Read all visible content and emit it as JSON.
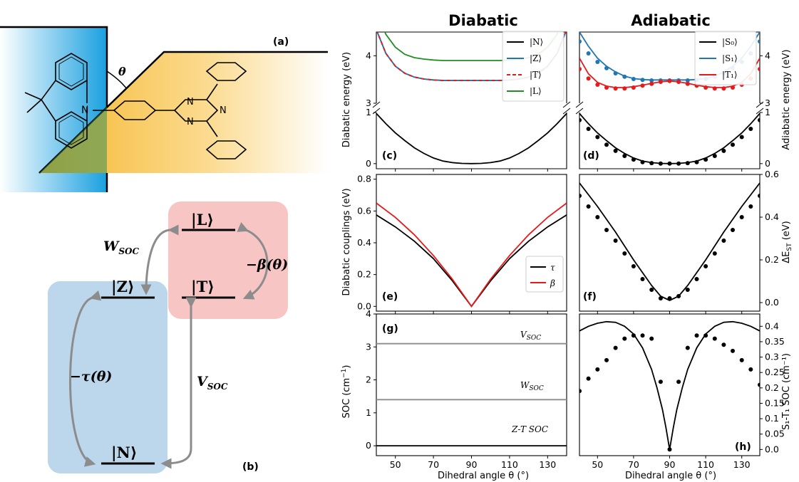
{
  "titles": {
    "left": "Diabatic",
    "right": "Adiabatic"
  },
  "panel_labels": {
    "a": "(a)",
    "b": "(b)",
    "c": "(c)",
    "d": "(d)",
    "e": "(e)",
    "f": "(f)",
    "g": "(g)",
    "h": "(h)"
  },
  "molecule": {
    "theta_label": "θ",
    "N": "N"
  },
  "scheme": {
    "L": "|L⟩",
    "T": "|T⟩",
    "Z": "|Z⟩",
    "N": "|N⟩",
    "W_soc": "W",
    "W_sub": "SOC",
    "V_soc": "V",
    "V_sub": "SOC",
    "beta": "−β(θ)",
    "tau": "−τ(θ)"
  },
  "colors": {
    "black": "#000000",
    "blue": "#1f77b4",
    "red": "#e8191b",
    "green": "#1f8f1f",
    "gray": "#8c8c8c",
    "boxblue": "#bcd6ec",
    "boxred": "#f8c5c5",
    "donor": "#1aa0e0",
    "acceptor": "#f5b62b"
  },
  "axes_labels": {
    "c_y": "Diabatic energy (eV)",
    "d_y": "Adiabatic energy (eV)",
    "e_y": "Diabatic couplings (eV)",
    "f_y": "ΔE",
    "f_y_sub": "ST",
    "f_y_unit": " (eV)",
    "g_y": "SOC (cm",
    "g_y_sup": "−1",
    "g_y_end": ")",
    "h_y": "S₁-T₁ SOC (cm⁻¹)",
    "x": "Dihedral angle θ (°)"
  },
  "legend_c": [
    "|N⟩",
    "|Z⟩",
    "|T⟩",
    "|L⟩"
  ],
  "legend_d": [
    "|S₀⟩",
    "|S₁⟩",
    "|T₁⟩"
  ],
  "legend_e": [
    "τ",
    "β"
  ],
  "soc_labels": {
    "v": "V",
    "v_sub": "SOC",
    "w": "W",
    "w_sub": "SOC",
    "zt": "Z-T SOC"
  },
  "chart_data": [
    {
      "panel": "c",
      "type": "line",
      "xlim": [
        40,
        140
      ],
      "ylim_top": [
        3,
        4.5
      ],
      "ylim_bottom": [
        -0.1,
        1
      ],
      "yticks_top": [
        3,
        4
      ],
      "yticks_bottom": [
        0,
        1
      ],
      "xticks": [
        50,
        70,
        90,
        110,
        130
      ],
      "series": [
        {
          "name": "|N⟩",
          "color": "#000000",
          "x": [
            40,
            45,
            50,
            55,
            60,
            65,
            70,
            75,
            80,
            85,
            90,
            95,
            100,
            105,
            110,
            115,
            120,
            125,
            130,
            135,
            140
          ],
          "values": [
            0.98,
            0.78,
            0.6,
            0.45,
            0.31,
            0.2,
            0.11,
            0.05,
            0.02,
            0.005,
            0.0,
            0.005,
            0.02,
            0.05,
            0.11,
            0.2,
            0.31,
            0.45,
            0.6,
            0.78,
            0.98
          ]
        },
        {
          "name": "|Z⟩",
          "color": "#1f77b4",
          "x": [
            40,
            45,
            50,
            55,
            60,
            65,
            70,
            75,
            80,
            85,
            90,
            95,
            100,
            105,
            110,
            115,
            120,
            125,
            130,
            135,
            140
          ],
          "values": [
            4.55,
            4.05,
            3.78,
            3.63,
            3.55,
            3.51,
            3.49,
            3.48,
            3.48,
            3.48,
            3.48,
            3.48,
            3.48,
            3.48,
            3.49,
            3.51,
            3.55,
            3.63,
            3.78,
            4.05,
            4.55
          ]
        },
        {
          "name": "|T⟩",
          "color": "#e8191b",
          "dash": true,
          "x": [
            40,
            45,
            50,
            55,
            60,
            65,
            70,
            75,
            80,
            85,
            90,
            95,
            100,
            105,
            110,
            115,
            120,
            125,
            130,
            135,
            140
          ],
          "values": [
            4.55,
            4.05,
            3.78,
            3.63,
            3.55,
            3.51,
            3.49,
            3.48,
            3.48,
            3.48,
            3.48,
            3.48,
            3.48,
            3.48,
            3.49,
            3.51,
            3.55,
            3.63,
            3.78,
            4.05,
            4.55
          ]
        },
        {
          "name": "|L⟩",
          "color": "#1f8f1f",
          "x": [
            40,
            45,
            50,
            55,
            60,
            65,
            70,
            75,
            80,
            85,
            90,
            95,
            100,
            105,
            110,
            115,
            120,
            125,
            130,
            135,
            140
          ],
          "values": [
            4.9,
            4.45,
            4.18,
            4.03,
            3.96,
            3.93,
            3.91,
            3.9,
            3.9,
            3.9,
            3.9,
            3.9,
            3.9,
            3.9,
            3.91,
            3.93,
            3.96,
            4.03,
            4.18,
            4.45,
            4.9
          ]
        }
      ]
    },
    {
      "panel": "d",
      "type": "line+scatter",
      "xlim": [
        40,
        140
      ],
      "ylim_top": [
        3,
        4.5
      ],
      "ylim_bottom": [
        -0.1,
        1
      ],
      "yticks_top": [
        3,
        4
      ],
      "yticks_bottom": [
        0,
        1
      ],
      "xticks": [
        50,
        70,
        90,
        110,
        130
      ],
      "series": [
        {
          "name": "|S₀⟩",
          "color": "#000000",
          "x": [
            40,
            45,
            50,
            55,
            60,
            65,
            70,
            75,
            80,
            85,
            90,
            95,
            100,
            105,
            110,
            115,
            120,
            125,
            130,
            135,
            140
          ],
          "values": [
            0.98,
            0.78,
            0.6,
            0.45,
            0.31,
            0.2,
            0.11,
            0.05,
            0.02,
            0.005,
            0.0,
            0.005,
            0.02,
            0.05,
            0.11,
            0.2,
            0.31,
            0.45,
            0.6,
            0.78,
            0.98
          ],
          "points_x": [
            40,
            45,
            50,
            55,
            60,
            65,
            70,
            75,
            80,
            85,
            90,
            95,
            100,
            105,
            110,
            115,
            120,
            125,
            130,
            135,
            140
          ],
          "points_y": [
            0.85,
            0.68,
            0.52,
            0.37,
            0.25,
            0.15,
            0.08,
            0.03,
            0.01,
            0.0,
            0.0,
            0.0,
            0.01,
            0.03,
            0.08,
            0.15,
            0.25,
            0.37,
            0.52,
            0.68,
            0.85
          ]
        },
        {
          "name": "|S₁⟩",
          "color": "#1f77b4",
          "x": [
            40,
            45,
            50,
            55,
            60,
            65,
            70,
            75,
            80,
            85,
            90,
            95,
            100,
            105,
            110,
            115,
            120,
            125,
            130,
            135,
            140
          ],
          "values": [
            4.5,
            4.2,
            3.95,
            3.78,
            3.66,
            3.57,
            3.52,
            3.5,
            3.49,
            3.49,
            3.49,
            3.49,
            3.49,
            3.5,
            3.52,
            3.57,
            3.66,
            3.78,
            3.95,
            4.2,
            4.5
          ],
          "points_x": [
            40,
            45,
            50,
            55,
            60,
            65,
            70,
            75,
            80,
            85,
            90,
            95,
            100,
            105,
            110,
            115,
            120,
            125,
            130,
            135,
            140
          ],
          "points_y": [
            4.3,
            4.05,
            3.87,
            3.74,
            3.63,
            3.56,
            3.51,
            3.49,
            3.48,
            3.48,
            3.48,
            3.48,
            3.48,
            3.49,
            3.51,
            3.56,
            3.63,
            3.74,
            3.87,
            4.05,
            4.3
          ]
        },
        {
          "name": "|T₁⟩",
          "color": "#e8191b",
          "x": [
            40,
            45,
            50,
            55,
            60,
            65,
            70,
            75,
            80,
            85,
            90,
            95,
            100,
            105,
            110,
            115,
            120,
            125,
            130,
            135,
            140
          ],
          "values": [
            3.95,
            3.62,
            3.44,
            3.36,
            3.33,
            3.33,
            3.35,
            3.38,
            3.42,
            3.45,
            3.47,
            3.45,
            3.42,
            3.38,
            3.35,
            3.33,
            3.33,
            3.36,
            3.44,
            3.62,
            3.95
          ],
          "points_x": [
            40,
            45,
            50,
            55,
            60,
            65,
            70,
            75,
            80,
            85,
            90,
            95,
            100,
            105,
            110,
            115,
            120,
            125,
            130,
            135,
            140
          ],
          "points_y": [
            3.72,
            3.52,
            3.39,
            3.33,
            3.31,
            3.31,
            3.33,
            3.37,
            3.41,
            3.45,
            3.47,
            3.45,
            3.41,
            3.37,
            3.33,
            3.31,
            3.31,
            3.33,
            3.39,
            3.52,
            3.72
          ]
        }
      ]
    },
    {
      "panel": "e",
      "type": "line",
      "xlim": [
        40,
        140
      ],
      "ylim": [
        -0.03,
        0.83
      ],
      "yticks": [
        0.0,
        0.2,
        0.4,
        0.6,
        0.8
      ],
      "xticks": [
        50,
        70,
        90,
        110,
        130
      ],
      "series": [
        {
          "name": "τ",
          "color": "#000000",
          "x": [
            40,
            50,
            60,
            70,
            80,
            90,
            100,
            110,
            120,
            130,
            140
          ],
          "values": [
            0.575,
            0.5,
            0.41,
            0.3,
            0.16,
            0.0,
            0.16,
            0.3,
            0.41,
            0.5,
            0.575
          ]
        },
        {
          "name": "β",
          "color": "#e8191b",
          "x": [
            40,
            50,
            60,
            70,
            80,
            90,
            100,
            110,
            120,
            130,
            140
          ],
          "values": [
            0.65,
            0.56,
            0.45,
            0.32,
            0.17,
            0.0,
            0.17,
            0.32,
            0.45,
            0.56,
            0.65
          ]
        }
      ]
    },
    {
      "panel": "f",
      "type": "line+scatter",
      "xlim": [
        40,
        140
      ],
      "ylim": [
        -0.04,
        0.6
      ],
      "yticks": [
        0.0,
        0.2,
        0.4,
        0.6
      ],
      "xticks": [
        50,
        70,
        90,
        110,
        130
      ],
      "series": [
        {
          "name": "line",
          "color": "#000000",
          "x": [
            40,
            50,
            60,
            70,
            80,
            85,
            90,
            95,
            100,
            110,
            120,
            130,
            140
          ],
          "values": [
            0.56,
            0.45,
            0.33,
            0.2,
            0.08,
            0.03,
            0.01,
            0.03,
            0.08,
            0.2,
            0.33,
            0.45,
            0.56
          ],
          "points_x": [
            40,
            45,
            50,
            55,
            60,
            65,
            70,
            75,
            80,
            85,
            90,
            95,
            100,
            105,
            110,
            115,
            120,
            125,
            130,
            135,
            140
          ],
          "points_y": [
            0.5,
            0.45,
            0.4,
            0.34,
            0.29,
            0.23,
            0.17,
            0.11,
            0.06,
            0.02,
            0.02,
            0.03,
            0.06,
            0.11,
            0.17,
            0.23,
            0.29,
            0.34,
            0.4,
            0.45,
            0.5
          ]
        }
      ]
    },
    {
      "panel": "g",
      "type": "line",
      "xlim": [
        40,
        140
      ],
      "ylim": [
        -0.3,
        4
      ],
      "yticks": [
        0,
        1,
        2,
        3,
        4
      ],
      "xticks": [
        50,
        70,
        90,
        110,
        130
      ],
      "series": [
        {
          "name": "V_SOC",
          "color": "#8c8c8c",
          "x": [
            40,
            140
          ],
          "values": [
            3.1,
            3.1
          ]
        },
        {
          "name": "W_SOC",
          "color": "#8c8c8c",
          "x": [
            40,
            140
          ],
          "values": [
            1.4,
            1.4
          ]
        },
        {
          "name": "Z-T SOC",
          "color": "#000000",
          "x": [
            40,
            140
          ],
          "values": [
            0.0,
            0.0
          ]
        }
      ]
    },
    {
      "panel": "h",
      "type": "line+scatter",
      "xlim": [
        40,
        140
      ],
      "ylim": [
        -0.02,
        0.44
      ],
      "yticks": [
        0.0,
        0.05,
        0.1,
        0.15,
        0.2,
        0.25,
        0.3,
        0.35,
        0.4
      ],
      "xticks": [
        50,
        70,
        90,
        110,
        130
      ],
      "series": [
        {
          "name": "line",
          "color": "#000000",
          "x": [
            40,
            45,
            50,
            55,
            60,
            65,
            70,
            75,
            80,
            83,
            86,
            88,
            90,
            92,
            94,
            97,
            100,
            105,
            110,
            115,
            120,
            125,
            130,
            135,
            140
          ],
          "values": [
            0.385,
            0.4,
            0.41,
            0.415,
            0.413,
            0.4,
            0.375,
            0.33,
            0.26,
            0.2,
            0.13,
            0.07,
            0.0,
            0.07,
            0.13,
            0.2,
            0.26,
            0.33,
            0.375,
            0.4,
            0.413,
            0.415,
            0.41,
            0.4,
            0.385
          ],
          "points_x": [
            40,
            45,
            50,
            55,
            60,
            65,
            70,
            75,
            80,
            85,
            90,
            95,
            100,
            105,
            110,
            115,
            120,
            125,
            130,
            135,
            140
          ],
          "points_y": [
            0.19,
            0.23,
            0.26,
            0.29,
            0.33,
            0.36,
            0.37,
            0.37,
            0.36,
            0.22,
            0.0,
            0.22,
            0.33,
            0.37,
            0.37,
            0.36,
            0.34,
            0.32,
            0.29,
            0.26,
            0.21
          ]
        }
      ]
    }
  ]
}
